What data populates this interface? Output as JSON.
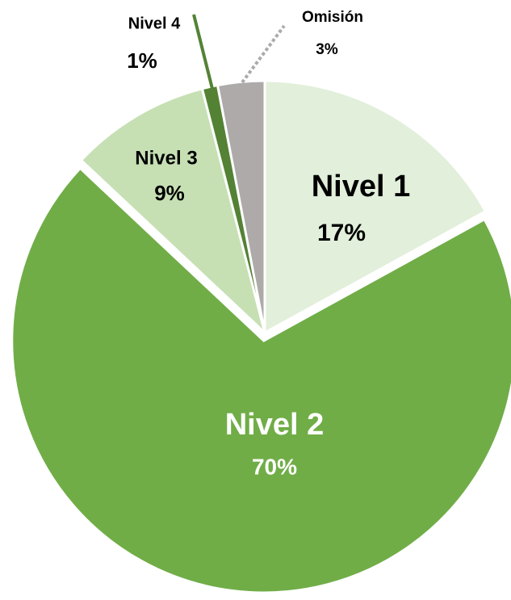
{
  "chart_data": {
    "type": "pie",
    "categories": [
      "Nivel 1",
      "Nivel 2",
      "Nivel 3",
      "Nivel 4",
      "Omisión"
    ],
    "values": [
      17,
      70,
      9,
      1,
      3
    ],
    "value_labels": [
      "17%",
      "70%",
      "9%",
      "1%",
      "3%"
    ],
    "colors": [
      "#e2efda",
      "#70ad47",
      "#c6e0b4",
      "#548235",
      "#aeaaaa"
    ]
  }
}
